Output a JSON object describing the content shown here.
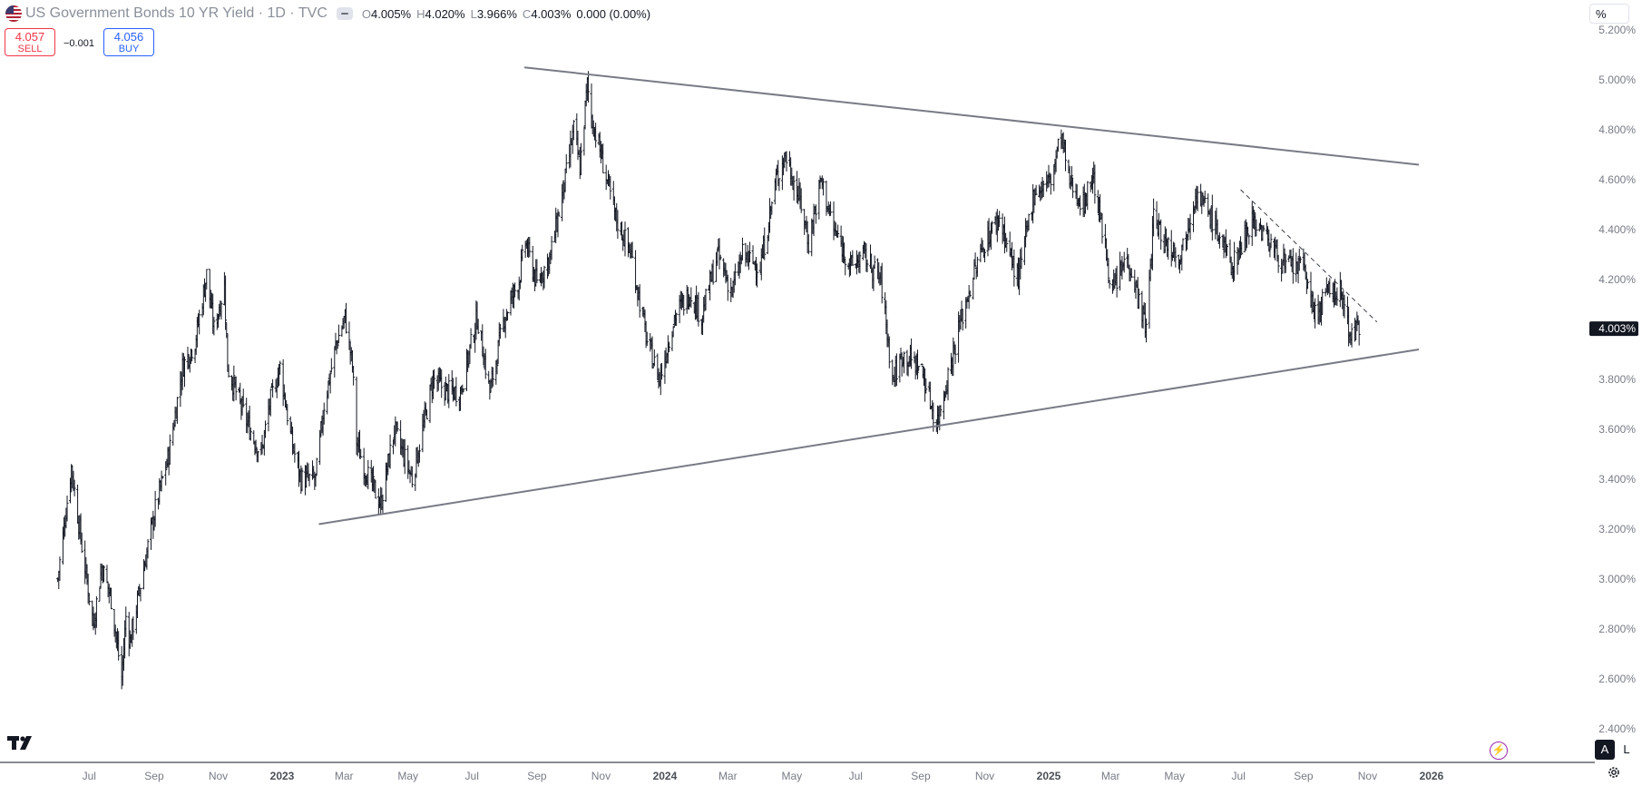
{
  "header": {
    "title": "US Government Bonds 10 YR Yield · 1D · TVC",
    "open_label": "O",
    "open": "4.005%",
    "high_label": "H",
    "high": "4.020%",
    "low_label": "L",
    "low": "3.966%",
    "close_label": "C",
    "close": "4.003%",
    "change": "0.000 (0.00%)"
  },
  "trade": {
    "sell_price": "4.057",
    "sell_label": "SELL",
    "spread": "−0.001",
    "buy_price": "4.056",
    "buy_label": "BUY"
  },
  "price_scale_unit": "%",
  "current_price_label": "4.003%",
  "scale_buttons": {
    "auto": "A",
    "log": "L"
  },
  "colors": {
    "bar": "#131722",
    "trendline": "#787b86",
    "axis_text": "#787b86",
    "sell": "#f23645",
    "buy": "#2962ff",
    "current_tag_bg": "#131722"
  },
  "icons": [
    "us-flag-icon",
    "hide-indicator-icon",
    "tradingview-logo-icon",
    "flash-icon",
    "gear-icon"
  ],
  "chart_data": {
    "type": "ohlc",
    "ylim": [
      2.3,
      5.25
    ],
    "y_ticks": [
      "2.400%",
      "2.600%",
      "2.800%",
      "3.000%",
      "3.200%",
      "3.400%",
      "3.600%",
      "3.800%",
      "4.000%",
      "4.200%",
      "4.400%",
      "4.600%",
      "4.800%",
      "5.000%",
      "5.200%"
    ],
    "x_ticks": [
      {
        "label": "Jul",
        "date": "2022-07-01"
      },
      {
        "label": "Sep",
        "date": "2022-09-01"
      },
      {
        "label": "Nov",
        "date": "2022-11-01"
      },
      {
        "label": "2023",
        "date": "2023-01-01",
        "bold": true
      },
      {
        "label": "Mar",
        "date": "2023-03-01"
      },
      {
        "label": "May",
        "date": "2023-05-01"
      },
      {
        "label": "Jul",
        "date": "2023-07-01"
      },
      {
        "label": "Sep",
        "date": "2023-09-01"
      },
      {
        "label": "Nov",
        "date": "2023-11-01"
      },
      {
        "label": "2024",
        "date": "2024-01-01",
        "bold": true
      },
      {
        "label": "Mar",
        "date": "2024-03-01"
      },
      {
        "label": "May",
        "date": "2024-05-01"
      },
      {
        "label": "Jul",
        "date": "2024-07-01"
      },
      {
        "label": "Sep",
        "date": "2024-09-01"
      },
      {
        "label": "Nov",
        "date": "2024-11-01"
      },
      {
        "label": "2025",
        "date": "2025-01-01",
        "bold": true
      },
      {
        "label": "Mar",
        "date": "2025-03-01"
      },
      {
        "label": "May",
        "date": "2025-05-01"
      },
      {
        "label": "Jul",
        "date": "2025-07-01"
      },
      {
        "label": "Sep",
        "date": "2025-09-01"
      },
      {
        "label": "Nov",
        "date": "2025-11-01"
      },
      {
        "label": "2026",
        "date": "2026-01-01",
        "bold": true
      }
    ],
    "close_path": [
      [
        "2022-06-01",
        3.0
      ],
      [
        "2022-06-14",
        3.45
      ],
      [
        "2022-06-25",
        3.1
      ],
      [
        "2022-07-05",
        2.82
      ],
      [
        "2022-07-13",
        3.05
      ],
      [
        "2022-07-22",
        2.92
      ],
      [
        "2022-08-01",
        2.6
      ],
      [
        "2022-08-05",
        2.85
      ],
      [
        "2022-08-09",
        2.75
      ],
      [
        "2022-08-20",
        3.0
      ],
      [
        "2022-09-02",
        3.28
      ],
      [
        "2022-09-15",
        3.5
      ],
      [
        "2022-09-28",
        3.85
      ],
      [
        "2022-10-10",
        3.95
      ],
      [
        "2022-10-21",
        4.22
      ],
      [
        "2022-10-28",
        4.0
      ],
      [
        "2022-11-07",
        4.18
      ],
      [
        "2022-11-10",
        3.85
      ],
      [
        "2022-11-22",
        3.7
      ],
      [
        "2022-12-06",
        3.55
      ],
      [
        "2022-12-12",
        3.5
      ],
      [
        "2022-12-20",
        3.7
      ],
      [
        "2022-12-30",
        3.85
      ],
      [
        "2023-01-10",
        3.55
      ],
      [
        "2023-01-19",
        3.4
      ],
      [
        "2023-02-02",
        3.4
      ],
      [
        "2023-02-10",
        3.7
      ],
      [
        "2023-02-22",
        3.95
      ],
      [
        "2023-03-02",
        4.05
      ],
      [
        "2023-03-09",
        3.85
      ],
      [
        "2023-03-13",
        3.55
      ],
      [
        "2023-03-20",
        3.45
      ],
      [
        "2023-04-05",
        3.3
      ],
      [
        "2023-04-18",
        3.6
      ],
      [
        "2023-05-05",
        3.4
      ],
      [
        "2023-05-25",
        3.8
      ],
      [
        "2023-06-08",
        3.75
      ],
      [
        "2023-06-20",
        3.75
      ],
      [
        "2023-07-06",
        4.05
      ],
      [
        "2023-07-18",
        3.75
      ],
      [
        "2023-08-01",
        4.05
      ],
      [
        "2023-08-15",
        4.2
      ],
      [
        "2023-08-21",
        4.35
      ],
      [
        "2023-09-01",
        4.18
      ],
      [
        "2023-09-14",
        4.3
      ],
      [
        "2023-09-28",
        4.6
      ],
      [
        "2023-10-06",
        4.8
      ],
      [
        "2023-10-12",
        4.65
      ],
      [
        "2023-10-19",
        4.98
      ],
      [
        "2023-10-23",
        4.85
      ],
      [
        "2023-11-01",
        4.7
      ],
      [
        "2023-11-15",
        4.45
      ],
      [
        "2023-11-30",
        4.3
      ],
      [
        "2023-12-15",
        3.95
      ],
      [
        "2023-12-27",
        3.8
      ],
      [
        "2024-01-10",
        4.05
      ],
      [
        "2024-01-25",
        4.15
      ],
      [
        "2024-02-05",
        4.05
      ],
      [
        "2024-02-20",
        4.3
      ],
      [
        "2024-03-05",
        4.15
      ],
      [
        "2024-03-15",
        4.3
      ],
      [
        "2024-04-01",
        4.25
      ],
      [
        "2024-04-16",
        4.6
      ],
      [
        "2024-04-25",
        4.7
      ],
      [
        "2024-05-10",
        4.5
      ],
      [
        "2024-05-17",
        4.35
      ],
      [
        "2024-05-29",
        4.6
      ],
      [
        "2024-06-10",
        4.4
      ],
      [
        "2024-06-27",
        4.25
      ],
      [
        "2024-07-08",
        4.3
      ],
      [
        "2024-07-25",
        4.2
      ],
      [
        "2024-08-05",
        3.8
      ],
      [
        "2024-08-15",
        3.9
      ],
      [
        "2024-09-01",
        3.85
      ],
      [
        "2024-09-16",
        3.62
      ],
      [
        "2024-09-25",
        3.78
      ],
      [
        "2024-10-07",
        4.0
      ],
      [
        "2024-10-20",
        4.2
      ],
      [
        "2024-11-01",
        4.35
      ],
      [
        "2024-11-15",
        4.45
      ],
      [
        "2024-11-25",
        4.3
      ],
      [
        "2024-12-03",
        4.2
      ],
      [
        "2024-12-18",
        4.55
      ],
      [
        "2025-01-03",
        4.6
      ],
      [
        "2025-01-13",
        4.78
      ],
      [
        "2025-01-20",
        4.6
      ],
      [
        "2025-02-03",
        4.5
      ],
      [
        "2025-02-12",
        4.62
      ],
      [
        "2025-03-03",
        4.15
      ],
      [
        "2025-03-17",
        4.3
      ],
      [
        "2025-04-04",
        4.0
      ],
      [
        "2025-04-11",
        4.45
      ],
      [
        "2025-04-22",
        4.35
      ],
      [
        "2025-05-07",
        4.3
      ],
      [
        "2025-05-21",
        4.55
      ],
      [
        "2025-06-05",
        4.45
      ],
      [
        "2025-06-25",
        4.25
      ],
      [
        "2025-07-14",
        4.45
      ],
      [
        "2025-07-31",
        4.35
      ],
      [
        "2025-08-15",
        4.25
      ],
      [
        "2025-09-02",
        4.25
      ],
      [
        "2025-09-11",
        4.05
      ],
      [
        "2025-09-25",
        4.15
      ],
      [
        "2025-10-06",
        4.15
      ],
      [
        "2025-10-16",
        3.98
      ],
      [
        "2025-10-24",
        4.003
      ]
    ],
    "trendlines": [
      {
        "style": "solid",
        "from": [
          "2023-08-20",
          5.05
        ],
        "to": [
          "2025-12-20",
          4.66
        ]
      },
      {
        "style": "solid",
        "from": [
          "2023-02-05",
          3.22
        ],
        "to": [
          "2025-12-20",
          3.92
        ]
      },
      {
        "style": "dashed",
        "from": [
          "2025-07-03",
          4.56
        ],
        "to": [
          "2025-11-10",
          4.03
        ]
      }
    ],
    "last_price": 4.003
  }
}
